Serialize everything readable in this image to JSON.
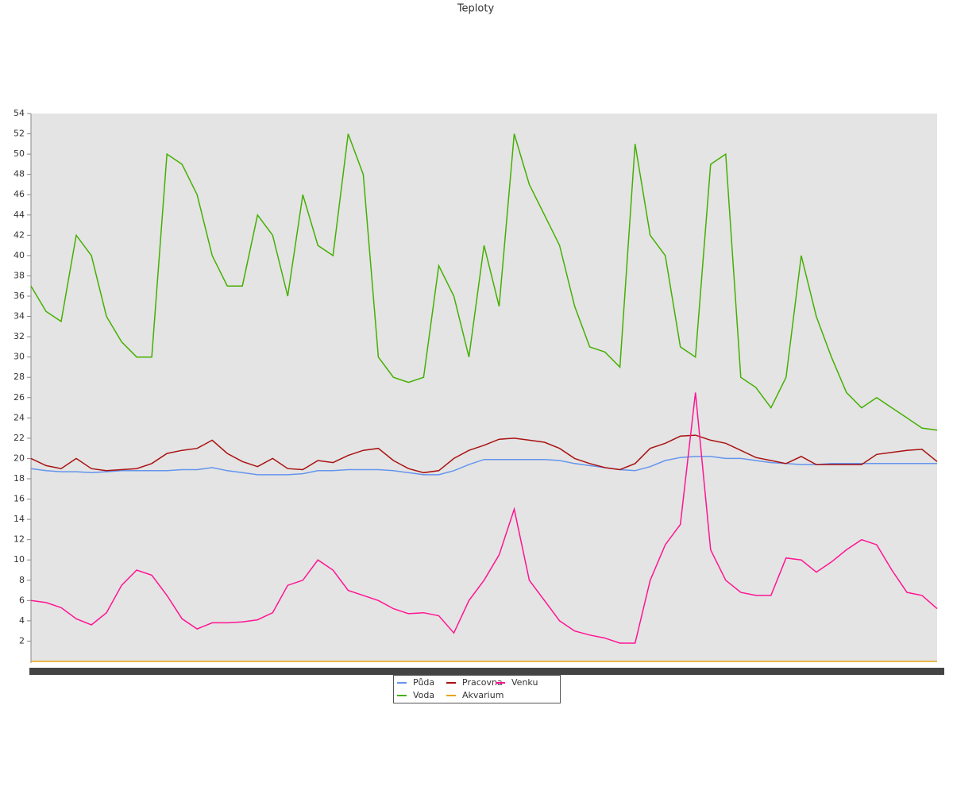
{
  "chart_data": {
    "type": "line",
    "title": "Teploty",
    "categories": [
      null,
      null,
      null,
      null,
      null,
      null,
      null,
      null,
      null,
      null,
      null,
      null,
      null,
      null,
      null,
      null,
      null,
      null,
      null,
      null,
      null,
      null,
      null,
      null,
      null,
      null,
      null,
      null,
      null,
      null,
      null,
      null,
      null,
      null,
      null,
      null,
      null,
      null,
      null,
      null,
      null,
      null,
      null,
      null,
      null,
      null,
      null,
      null,
      null,
      null,
      null,
      null,
      null,
      null,
      null,
      null,
      null,
      null,
      null,
      null,
      null
    ],
    "ylim": [
      0,
      54
    ],
    "yticks": [
      2,
      4,
      6,
      8,
      10,
      12,
      14,
      16,
      18,
      20,
      22,
      24,
      26,
      28,
      30,
      32,
      34,
      36,
      38,
      40,
      42,
      44,
      46,
      48,
      50,
      52,
      54
    ],
    "grid": false,
    "legend": "bottom",
    "series": [
      {
        "name": "Půda",
        "color": "#6495ed",
        "values": [
          19,
          18.8,
          18.7,
          18.7,
          18.6,
          18.7,
          18.8,
          18.8,
          18.8,
          18.8,
          18.9,
          18.9,
          19.1,
          18.8,
          18.6,
          18.4,
          18.4,
          18.4,
          18.5,
          18.8,
          18.8,
          18.9,
          18.9,
          18.9,
          18.8,
          18.6,
          18.4,
          18.4,
          18.8,
          19.4,
          19.9,
          19.9,
          19.9,
          19.9,
          19.9,
          19.8,
          19.5,
          19.3,
          19.1,
          18.9,
          18.8,
          19.2,
          19.8,
          20.1,
          20.2,
          20.2,
          20,
          20,
          19.8,
          19.6,
          19.5,
          19.4,
          19.4,
          19.5,
          19.5,
          19.5,
          19.5,
          19.5,
          19.5,
          19.5,
          19.5
        ]
      },
      {
        "name": "Voda",
        "color": "#44b000",
        "values": [
          37,
          34.5,
          33.5,
          42,
          40,
          34,
          31.5,
          30,
          30,
          50,
          49,
          46,
          40,
          37,
          37,
          44,
          42,
          36,
          46,
          41,
          40,
          52,
          48,
          30,
          28,
          27.5,
          28,
          39,
          36,
          30,
          41,
          35,
          52,
          47,
          44,
          41,
          35,
          31,
          30.5,
          29,
          51,
          42,
          40,
          31,
          30,
          49,
          50,
          28,
          27,
          25,
          28,
          40,
          34,
          30,
          26.5,
          25,
          26,
          25,
          24,
          23,
          22.8
        ]
      },
      {
        "name": "Pracovna",
        "color": "#aa1111",
        "values": [
          20,
          19.3,
          19,
          20,
          19,
          18.8,
          18.9,
          19,
          19.5,
          20.5,
          20.8,
          21,
          21.8,
          20.5,
          19.7,
          19.2,
          20,
          19,
          18.9,
          19.8,
          19.6,
          20.3,
          20.8,
          21,
          19.8,
          19,
          18.6,
          18.8,
          20,
          20.8,
          21.3,
          21.9,
          22,
          21.8,
          21.6,
          21,
          20,
          19.5,
          19.1,
          18.9,
          19.5,
          21,
          21.5,
          22.2,
          22.3,
          21.8,
          21.5,
          20.8,
          20.1,
          19.8,
          19.5,
          20.2,
          19.4,
          19.4,
          19.4,
          19.4,
          20.4,
          20.6,
          20.8,
          20.9,
          19.7
        ]
      },
      {
        "name": "Akvarium",
        "color": "#e8a317",
        "values": [
          0,
          0,
          0,
          0,
          0,
          0,
          0,
          0,
          0,
          0,
          0,
          0,
          0,
          0,
          0,
          0,
          0,
          0,
          0,
          0,
          0,
          0,
          0,
          0,
          0,
          0,
          0,
          0,
          0,
          0,
          0,
          0,
          0,
          0,
          0,
          0,
          0,
          0,
          0,
          0,
          0,
          0,
          0,
          0,
          0,
          0,
          0,
          0,
          0,
          0,
          0,
          0,
          0,
          0,
          0,
          0,
          0,
          0,
          0,
          0,
          0
        ]
      },
      {
        "name": "Venku",
        "color": "#ff1493",
        "values": [
          6,
          5.8,
          5.3,
          4.2,
          3.6,
          4.8,
          7.5,
          9,
          8.5,
          6.5,
          4.2,
          3.2,
          3.8,
          3.8,
          3.9,
          4.1,
          4.8,
          7.5,
          8,
          10,
          9,
          7,
          6.5,
          6,
          5.2,
          4.7,
          4.8,
          4.5,
          2.8,
          6,
          8,
          10.5,
          15,
          8,
          6,
          4,
          3,
          2.6,
          2.3,
          1.8,
          1.8,
          8,
          11.5,
          13.5,
          26.5,
          11,
          8,
          6.8,
          6.5,
          6.5,
          10.2,
          10,
          8.8,
          9.8,
          11,
          12,
          11.5,
          9,
          6.8,
          6.5,
          5.2
        ]
      }
    ]
  }
}
